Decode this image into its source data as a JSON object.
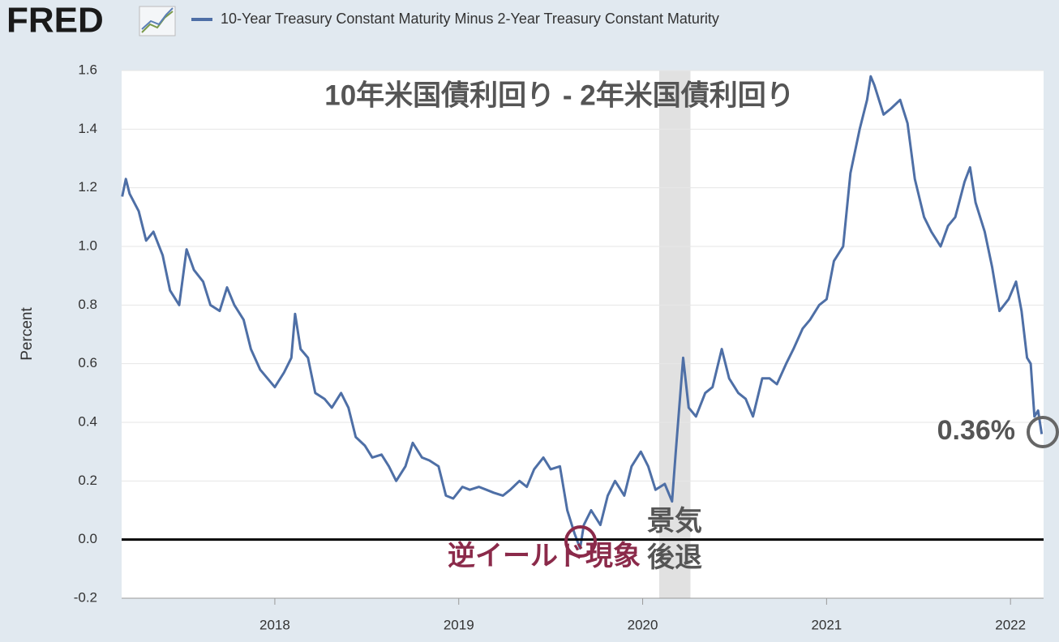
{
  "logo": "FRED",
  "chart_data": {
    "type": "line",
    "title": "10年米国債利回り - 2年米国債利回り",
    "ylabel": "Percent",
    "xlim": [
      2017.167,
      2022.18
    ],
    "xticks": [
      2018,
      2019,
      2020,
      2021,
      2022
    ],
    "ylim": [
      -0.2,
      1.6
    ],
    "yticks": [
      -0.2,
      {
        "value": 0,
        "label": "0.0"
      },
      0.2,
      0.4,
      0.6,
      0.8,
      {
        "value": 1,
        "label": "1.0"
      },
      1.2,
      1.4,
      1.6
    ],
    "grid": true,
    "zero_line": true,
    "recession": {
      "start": 2020.09,
      "end": 2020.26,
      "color": "#e1e1e1"
    },
    "annotations": {
      "inversion": "逆イールド現象",
      "recession_1": "景気",
      "recession_2": "後退",
      "last_value": "0.36%"
    },
    "series": [
      {
        "name": "10-Year Treasury Constant Maturity Minus 2-Year Treasury Constant Maturity",
        "color": "#4e6fa6",
        "x": [
          2017.17,
          2017.19,
          2017.21,
          2017.26,
          2017.3,
          2017.34,
          2017.39,
          2017.43,
          2017.48,
          2017.52,
          2017.56,
          2017.61,
          2017.65,
          2017.7,
          2017.74,
          2017.78,
          2017.83,
          2017.87,
          2017.92,
          2017.96,
          2018.0,
          2018.05,
          2018.09,
          2018.11,
          2018.14,
          2018.18,
          2018.22,
          2018.27,
          2018.31,
          2018.36,
          2018.4,
          2018.44,
          2018.49,
          2018.53,
          2018.58,
          2018.62,
          2018.66,
          2018.71,
          2018.75,
          2018.8,
          2018.84,
          2018.89,
          2018.93,
          2018.97,
          2019.02,
          2019.06,
          2019.11,
          2019.15,
          2019.19,
          2019.24,
          2019.28,
          2019.33,
          2019.37,
          2019.41,
          2019.46,
          2019.5,
          2019.55,
          2019.59,
          2019.63,
          2019.66,
          2019.68,
          2019.72,
          2019.77,
          2019.81,
          2019.85,
          2019.9,
          2019.94,
          2019.99,
          2020.03,
          2020.07,
          2020.12,
          2020.16,
          2020.18,
          2020.22,
          2020.25,
          2020.29,
          2020.34,
          2020.38,
          2020.43,
          2020.47,
          2020.52,
          2020.56,
          2020.6,
          2020.65,
          2020.69,
          2020.73,
          2020.78,
          2020.82,
          2020.87,
          2020.91,
          2020.96,
          2021.0,
          2021.04,
          2021.09,
          2021.13,
          2021.18,
          2021.22,
          2021.24,
          2021.26,
          2021.31,
          2021.35,
          2021.4,
          2021.44,
          2021.48,
          2021.53,
          2021.57,
          2021.62,
          2021.66,
          2021.7,
          2021.75,
          2021.78,
          2021.81,
          2021.86,
          2021.9,
          2021.94,
          2021.99,
          2022.03,
          2022.06,
          2022.09,
          2022.11,
          2022.13,
          2022.15,
          2022.17
        ],
        "values": [
          1.17,
          1.23,
          1.18,
          1.12,
          1.02,
          1.05,
          0.97,
          0.85,
          0.8,
          0.99,
          0.92,
          0.88,
          0.8,
          0.78,
          0.86,
          0.8,
          0.75,
          0.65,
          0.58,
          0.55,
          0.52,
          0.57,
          0.62,
          0.77,
          0.65,
          0.62,
          0.5,
          0.48,
          0.45,
          0.5,
          0.45,
          0.35,
          0.32,
          0.28,
          0.29,
          0.25,
          0.2,
          0.25,
          0.33,
          0.28,
          0.27,
          0.25,
          0.15,
          0.14,
          0.18,
          0.17,
          0.18,
          0.17,
          0.16,
          0.15,
          0.17,
          0.2,
          0.18,
          0.24,
          0.28,
          0.24,
          0.25,
          0.1,
          0.02,
          -0.03,
          0.05,
          0.1,
          0.05,
          0.15,
          0.2,
          0.15,
          0.25,
          0.3,
          0.25,
          0.17,
          0.19,
          0.13,
          0.3,
          0.62,
          0.45,
          0.42,
          0.5,
          0.52,
          0.65,
          0.55,
          0.5,
          0.48,
          0.42,
          0.55,
          0.55,
          0.53,
          0.6,
          0.65,
          0.72,
          0.75,
          0.8,
          0.82,
          0.95,
          1.0,
          1.25,
          1.4,
          1.5,
          1.58,
          1.55,
          1.45,
          1.47,
          1.5,
          1.42,
          1.23,
          1.1,
          1.05,
          1.0,
          1.07,
          1.1,
          1.22,
          1.27,
          1.15,
          1.05,
          0.93,
          0.78,
          0.82,
          0.88,
          0.78,
          0.62,
          0.6,
          0.42,
          0.44,
          0.36
        ]
      }
    ]
  }
}
